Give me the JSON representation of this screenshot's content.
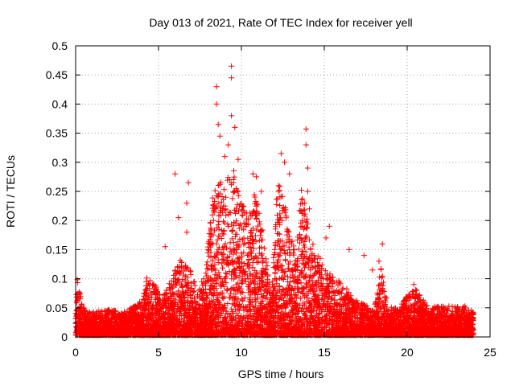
{
  "chart_data": {
    "type": "scatter",
    "title": "Day 013 of 2021, Rate Of TEC Index for receiver yell",
    "xlabel": "GPS time / hours",
    "ylabel": "ROTI / TECUs",
    "xlim": [
      0,
      25
    ],
    "ylim": [
      0,
      0.5
    ],
    "xticks": [
      "0",
      "5",
      "10",
      "15",
      "20",
      "25"
    ],
    "yticks": [
      "0",
      "0.05",
      "0.1",
      "0.15",
      "0.2",
      "0.25",
      "0.3",
      "0.35",
      "0.4",
      "0.45",
      "0.5"
    ],
    "grid": true,
    "marker": "+",
    "color": "#ff0000",
    "series": [
      {
        "name": "ROTI",
        "envelope": {
          "x": [
            0.0,
            0.1,
            0.3,
            0.6,
            1.0,
            2.0,
            3.0,
            4.0,
            4.3,
            4.8,
            5.2,
            5.8,
            6.3,
            6.8,
            7.3,
            7.8,
            8.3,
            8.6,
            9.0,
            9.4,
            9.8,
            10.3,
            10.8,
            11.3,
            11.8,
            12.2,
            12.5,
            12.9,
            13.3,
            13.7,
            14.1,
            14.6,
            15.1,
            15.6,
            16.1,
            16.6,
            17.1,
            17.6,
            18.0,
            18.4,
            18.9,
            19.5,
            20.0,
            20.5,
            21.0,
            21.5,
            22.0,
            22.5,
            23.0,
            23.5,
            24.0
          ],
          "ymax": [
            0.06,
            0.1,
            0.07,
            0.04,
            0.04,
            0.045,
            0.04,
            0.06,
            0.1,
            0.09,
            0.06,
            0.1,
            0.13,
            0.12,
            0.08,
            0.1,
            0.25,
            0.27,
            0.25,
            0.3,
            0.25,
            0.22,
            0.25,
            0.18,
            0.06,
            0.28,
            0.25,
            0.17,
            0.15,
            0.28,
            0.17,
            0.14,
            0.12,
            0.1,
            0.09,
            0.07,
            0.06,
            0.05,
            0.04,
            0.12,
            0.05,
            0.045,
            0.07,
            0.08,
            0.06,
            0.05,
            0.05,
            0.05,
            0.05,
            0.05,
            0.04
          ]
        },
        "outliers": [
          [
            6.0,
            0.28
          ],
          [
            6.2,
            0.205
          ],
          [
            6.7,
            0.23
          ],
          [
            6.8,
            0.265
          ],
          [
            6.7,
            0.18
          ],
          [
            5.4,
            0.155
          ],
          [
            8.5,
            0.43
          ],
          [
            8.5,
            0.4
          ],
          [
            8.6,
            0.365
          ],
          [
            8.7,
            0.345
          ],
          [
            9.2,
            0.33
          ],
          [
            9.4,
            0.465
          ],
          [
            9.4,
            0.445
          ],
          [
            9.4,
            0.38
          ],
          [
            9.6,
            0.36
          ],
          [
            9.8,
            0.305
          ],
          [
            9.0,
            0.31
          ],
          [
            10.7,
            0.28
          ],
          [
            10.9,
            0.275
          ],
          [
            11.2,
            0.25
          ],
          [
            12.4,
            0.315
          ],
          [
            12.6,
            0.3
          ],
          [
            12.9,
            0.28
          ],
          [
            13.9,
            0.357
          ],
          [
            13.9,
            0.33
          ],
          [
            14.0,
            0.29
          ],
          [
            14.0,
            0.25
          ],
          [
            14.1,
            0.22
          ],
          [
            15.3,
            0.19
          ],
          [
            15.1,
            0.17
          ],
          [
            16.5,
            0.15
          ],
          [
            17.4,
            0.14
          ],
          [
            17.9,
            0.115
          ],
          [
            18.5,
            0.16
          ],
          [
            18.3,
            0.13
          ],
          [
            20.4,
            0.09
          ]
        ]
      }
    ]
  }
}
